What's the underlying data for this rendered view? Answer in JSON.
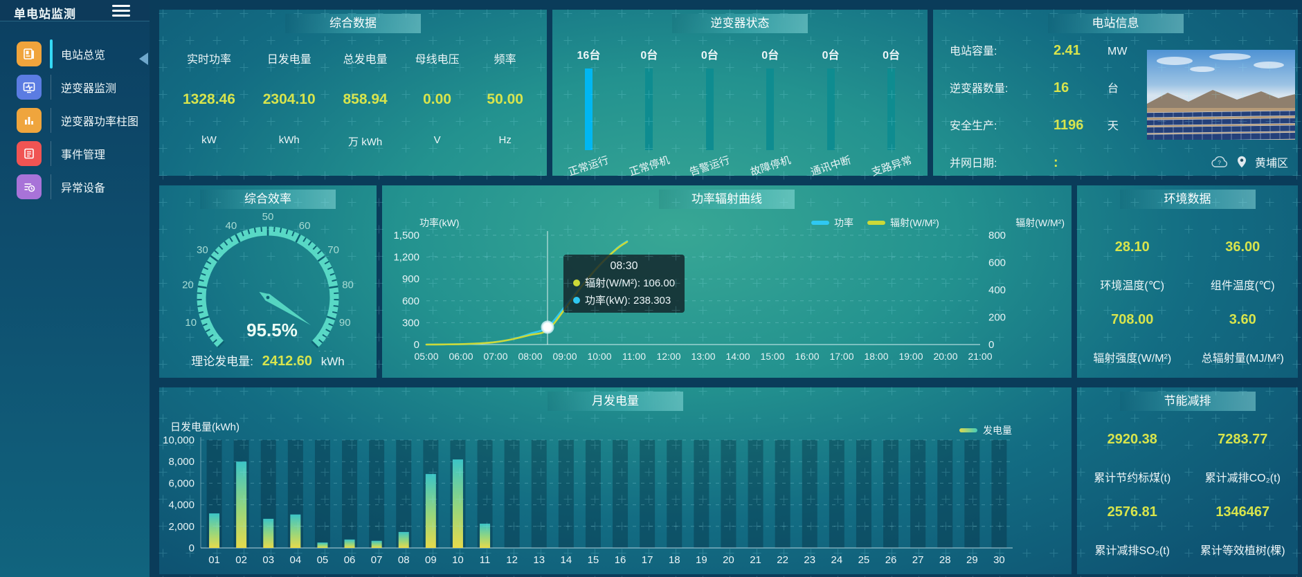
{
  "app": {
    "title": "单电站监测"
  },
  "colors": {
    "value_yellow": "#d8e44c",
    "inverter_bar_active": "#00b7f2",
    "inverter_bar_idle": "#0e8c90",
    "power_line": "#2fc8f2",
    "radiation_line": "#ccd938",
    "gauge_arc": "#58d8c5",
    "bar_gradient_top": "#3cc4c6",
    "bar_gradient_bottom": "#e6da4c",
    "active_nav": "#35d9f5"
  },
  "sidebar": {
    "items": [
      {
        "label": "电站总览",
        "icon": "station-overview-icon",
        "color": "#f0a43c",
        "active": true
      },
      {
        "label": "逆变器监测",
        "icon": "inverter-monitor-icon",
        "color": "#5b7ce2",
        "active": false
      },
      {
        "label": "逆变器功率柱图",
        "icon": "inverter-power-bars-icon",
        "color": "#efa53d",
        "active": false
      },
      {
        "label": "事件管理",
        "icon": "event-management-icon",
        "color": "#f05453",
        "active": false
      },
      {
        "label": "异常设备",
        "icon": "abnormal-device-icon",
        "color": "#a873d8",
        "active": false
      }
    ]
  },
  "summary": {
    "title": "综合数据",
    "metrics": [
      {
        "label": "实时功率",
        "value": "1328.46",
        "unit": "kW"
      },
      {
        "label": "日发电量",
        "value": "2304.10",
        "unit": "kWh"
      },
      {
        "label": "总发电量",
        "value": "858.94",
        "unit": "万 kWh"
      },
      {
        "label": "母线电压",
        "value": "0.00",
        "unit": "V"
      },
      {
        "label": "频率",
        "value": "50.00",
        "unit": "Hz"
      }
    ]
  },
  "inverter_status": {
    "title": "逆变器状态",
    "items": [
      {
        "count": "16台",
        "label": "正常运行",
        "active": true
      },
      {
        "count": "0台",
        "label": "正常停机",
        "active": false
      },
      {
        "count": "0台",
        "label": "告警运行",
        "active": false
      },
      {
        "count": "0台",
        "label": "故障停机",
        "active": false
      },
      {
        "count": "0台",
        "label": "通讯中断",
        "active": false
      },
      {
        "count": "0台",
        "label": "支路异常",
        "active": false
      }
    ]
  },
  "station_info": {
    "title": "电站信息",
    "rows": [
      {
        "label": "电站容量:",
        "value": "2.41",
        "unit": "MW"
      },
      {
        "label": "逆变器数量:",
        "value": "16",
        "unit": "台"
      },
      {
        "label": "安全生产:",
        "value": "1196",
        "unit": "天"
      },
      {
        "label": "并网日期: ",
        "value": ":",
        "unit": ""
      }
    ],
    "location": "黄埔区"
  },
  "efficiency": {
    "title": "综合效率",
    "value_label": "95.5%",
    "footer_label": "理论发电量:",
    "footer_value": "2412.60",
    "footer_unit": "kWh"
  },
  "power_curve": {
    "title": "功率辐射曲线",
    "left_axis_name": "功率(kW)",
    "right_axis_name": "辐射(W/M²)",
    "legend": [
      {
        "label": "功率",
        "color": "#2fc8f2"
      },
      {
        "label": "辐射(W/M²)",
        "color": "#ccd938"
      }
    ],
    "tooltip": {
      "title": "08:30",
      "rows": [
        {
          "label": "辐射(W/M²)",
          "value": "106.00",
          "color": "#ccd938"
        },
        {
          "label": "功率(kW)",
          "value": "238.303",
          "color": "#2fc8f2"
        }
      ]
    }
  },
  "environment": {
    "title": "环境数据",
    "metrics": [
      {
        "value": "28.10",
        "label": "环境温度(℃)"
      },
      {
        "value": "36.00",
        "label": "组件温度(℃)"
      },
      {
        "value": "708.00",
        "label": "辐射强度(W/M²)"
      },
      {
        "value": "3.60",
        "label": "总辐射量(MJ/M²)"
      }
    ]
  },
  "monthly": {
    "title": "月发电量",
    "axis_name": "日发电量(kWh)",
    "legend": "发电量"
  },
  "savings": {
    "title": "节能减排",
    "metrics": [
      {
        "value": "2920.38",
        "label": "累计节约标煤(t)"
      },
      {
        "value": "7283.77",
        "label": "累计减排CO₂(t)"
      },
      {
        "value": "2576.81",
        "label": "累计减排SO₂(t)"
      },
      {
        "value": "1346467",
        "label": "累计等效植树(棵)"
      }
    ]
  },
  "chart_data": [
    {
      "id": "efficiency_gauge",
      "type": "gauge",
      "title": "综合效率",
      "min": 0,
      "max": 100,
      "value": 95.5,
      "value_label": "95.5%",
      "ticks": [
        0,
        10,
        20,
        30,
        40,
        50,
        60,
        70,
        80,
        90,
        100
      ],
      "arc_color": "#58d8c5"
    },
    {
      "id": "power_radiation_curve",
      "type": "line",
      "title": "功率辐射曲线",
      "x": [
        5,
        5.5,
        6,
        6.5,
        7,
        7.5,
        8,
        8.5,
        9,
        9.5,
        10,
        10.5,
        10.8
      ],
      "x_labels": [
        "05:00",
        "06:00",
        "07:00",
        "08:00",
        "09:00",
        "10:00",
        "11:00",
        "12:00",
        "13:00",
        "14:00",
        "15:00",
        "16:00",
        "17:00",
        "18:00",
        "19:00",
        "20:00",
        "21:00"
      ],
      "x_range": [
        5,
        21
      ],
      "series": [
        {
          "name": "功率",
          "axis": "left",
          "color": "#2fc8f2",
          "values": [
            0,
            2,
            5,
            14,
            35,
            75,
            150,
            238.303,
            520,
            820,
            1080,
            1320,
            1420
          ]
        },
        {
          "name": "辐射(W/M²)",
          "axis": "right",
          "color": "#ccd938",
          "values": [
            0,
            1,
            3,
            8,
            18,
            40,
            70,
            106,
            260,
            430,
            580,
            700,
            752
          ]
        }
      ],
      "left_axis": {
        "name": "功率(kW)",
        "min": 0,
        "max": 1500,
        "ticks": [
          0,
          300,
          600,
          900,
          1200,
          1500
        ]
      },
      "right_axis": {
        "name": "辐射(W/M²)",
        "min": 0,
        "max": 800,
        "ticks": [
          0,
          200,
          400,
          600,
          800
        ]
      },
      "hover": {
        "x": 8.5,
        "time": "08:30",
        "power": 238.303,
        "radiation": 106.0
      },
      "legend_position": "top-right",
      "grid": "dashed-horizontal"
    },
    {
      "id": "monthly_generation",
      "type": "bar",
      "title": "月发电量",
      "ylabel": "日发电量(kWh)",
      "ylim": [
        0,
        10000
      ],
      "yticks": [
        0,
        2000,
        4000,
        6000,
        8000,
        10000
      ],
      "categories": [
        "01",
        "02",
        "03",
        "04",
        "05",
        "06",
        "07",
        "08",
        "09",
        "10",
        "11",
        "12",
        "13",
        "14",
        "15",
        "16",
        "17",
        "18",
        "19",
        "20",
        "21",
        "22",
        "23",
        "24",
        "25",
        "26",
        "27",
        "28",
        "29",
        "30"
      ],
      "values": [
        3200,
        8000,
        2700,
        3100,
        500,
        780,
        660,
        1480,
        6850,
        8200,
        2250,
        0,
        0,
        0,
        0,
        0,
        0,
        0,
        0,
        0,
        0,
        0,
        0,
        0,
        0,
        0,
        0,
        0,
        0,
        0
      ],
      "series_name": "发电量",
      "legend_position": "top-right",
      "grid": "dashed-horizontal"
    }
  ]
}
